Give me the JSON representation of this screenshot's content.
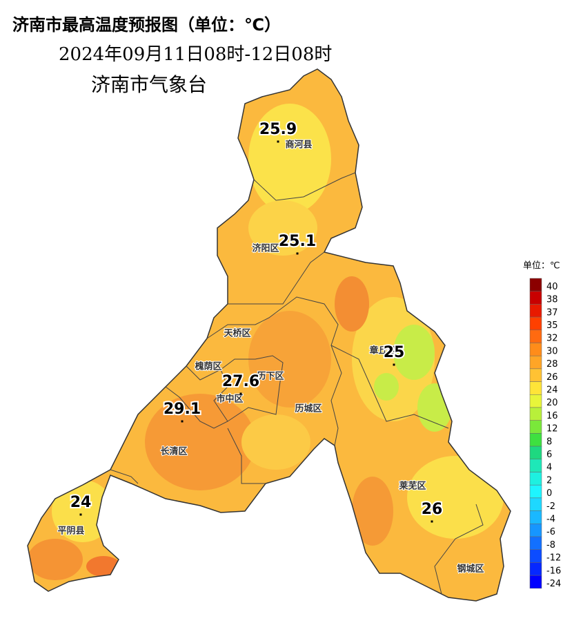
{
  "header": {
    "title": "济南市最高温度预报图（单位：℃）",
    "period": "2024年09月11日08时-12日08时",
    "agency": "济南市气象台"
  },
  "legend": {
    "title": "单位：℃",
    "items": [
      {
        "label": 40,
        "color": "#8b0000"
      },
      {
        "label": 38,
        "color": "#c80000"
      },
      {
        "label": 37,
        "color": "#e81a00"
      },
      {
        "label": 35,
        "color": "#ff4000"
      },
      {
        "label": 32,
        "color": "#ff6a10"
      },
      {
        "label": 30,
        "color": "#ff8c1a"
      },
      {
        "label": 28,
        "color": "#ffa526"
      },
      {
        "label": 26,
        "color": "#ffc233"
      },
      {
        "label": 24,
        "color": "#ffe438"
      },
      {
        "label": 20,
        "color": "#e8f53a"
      },
      {
        "label": 16,
        "color": "#b8f03a"
      },
      {
        "label": 12,
        "color": "#7ae83a"
      },
      {
        "label": 8,
        "color": "#3ee040"
      },
      {
        "label": 6,
        "color": "#1ed880"
      },
      {
        "label": 4,
        "color": "#1ee8b8"
      },
      {
        "label": 2,
        "color": "#1ef0e0"
      },
      {
        "label": 0,
        "color": "#1ef5ff"
      },
      {
        "label": -2,
        "color": "#1ed8ff"
      },
      {
        "label": -4,
        "color": "#1ab8ff"
      },
      {
        "label": -6,
        "color": "#1696ff"
      },
      {
        "label": -8,
        "color": "#1270ff"
      },
      {
        "label": -12,
        "color": "#0c4cff"
      },
      {
        "label": -16,
        "color": "#0628ff"
      },
      {
        "label": -24,
        "color": "#0000ff"
      }
    ]
  },
  "stations": [
    {
      "value": 25.9,
      "name": "商河县"
    },
    {
      "value": 25.1,
      "name": "济阳区"
    },
    {
      "value": 27.6,
      "name": "历下区"
    },
    {
      "value": 25,
      "name": "章丘区"
    },
    {
      "value": 29.1
    },
    {
      "value": 24,
      "name": "平阴县"
    },
    {
      "value": 26,
      "name": "莱芜区"
    }
  ],
  "districts": [
    "天桥区",
    "槐荫区",
    "市中区",
    "历城区",
    "长清区",
    "钢城区"
  ]
}
